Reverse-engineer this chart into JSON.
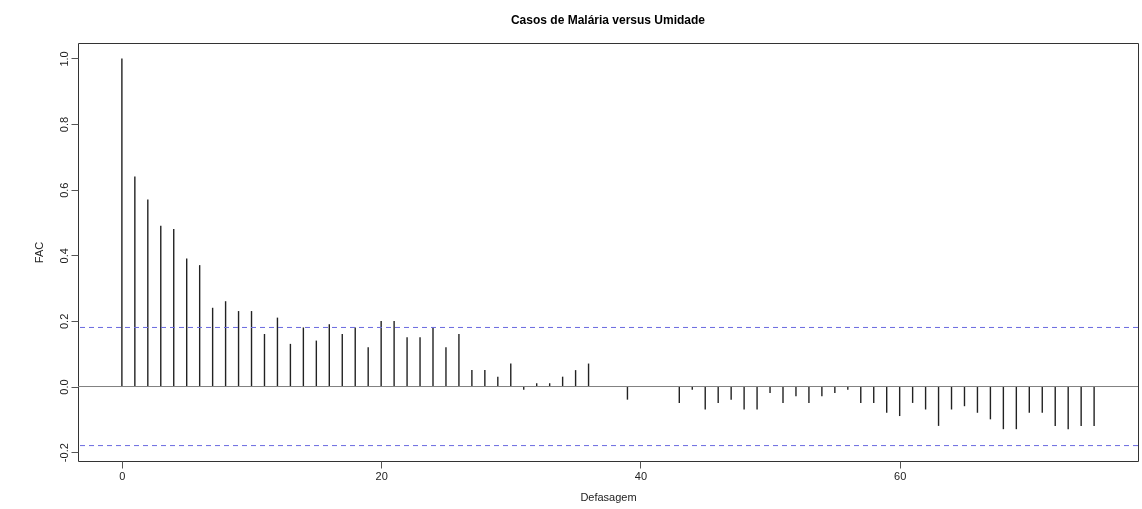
{
  "chart_data": {
    "type": "bar",
    "title": "Casos de Malária versus Umidade",
    "xlabel": "Defasagem",
    "ylabel": "FAC",
    "x": [
      0,
      1,
      2,
      3,
      4,
      5,
      6,
      7,
      8,
      9,
      10,
      11,
      12,
      13,
      14,
      15,
      16,
      17,
      18,
      19,
      20,
      21,
      22,
      23,
      24,
      25,
      26,
      27,
      28,
      29,
      30,
      31,
      32,
      33,
      34,
      35,
      36,
      37,
      38,
      39,
      40,
      41,
      42,
      43,
      44,
      45,
      46,
      47,
      48,
      49,
      50,
      51,
      52,
      53,
      54,
      55,
      56,
      57,
      58,
      59,
      60,
      61,
      62,
      63,
      64,
      65,
      66,
      67,
      68,
      69,
      70,
      71,
      72,
      73,
      74,
      75
    ],
    "values": [
      1.0,
      0.64,
      0.57,
      0.49,
      0.48,
      0.39,
      0.37,
      0.24,
      0.26,
      0.23,
      0.23,
      0.16,
      0.21,
      0.13,
      0.18,
      0.14,
      0.19,
      0.16,
      0.18,
      0.12,
      0.2,
      0.2,
      0.15,
      0.15,
      0.18,
      0.12,
      0.16,
      0.05,
      0.05,
      0.03,
      0.07,
      -0.01,
      0.01,
      0.01,
      0.03,
      0.05,
      0.07,
      0.0,
      0.0,
      -0.04,
      0.0,
      0.0,
      0.0,
      -0.05,
      -0.01,
      -0.07,
      -0.05,
      -0.04,
      -0.07,
      -0.07,
      -0.02,
      -0.05,
      -0.03,
      -0.05,
      -0.03,
      -0.02,
      -0.01,
      -0.05,
      -0.05,
      -0.08,
      -0.09,
      -0.05,
      -0.07,
      -0.12,
      -0.07,
      -0.06,
      -0.08,
      -0.1,
      -0.13,
      -0.13,
      -0.08,
      -0.08,
      -0.12,
      -0.13,
      -0.12,
      -0.12
    ],
    "color": "#222222",
    "xlim": [
      -3,
      78
    ],
    "xticks": [
      0,
      20,
      40,
      60
    ],
    "ylim": [
      -0.227,
      1.047
    ],
    "yticks": [
      {
        "value": -0.2,
        "label": "-0.2"
      },
      {
        "value": 0,
        "label": "0.0"
      },
      0.2,
      0.4,
      0.6,
      0.8,
      {
        "value": 1,
        "label": "1.0"
      }
    ],
    "ref_lines": [
      {
        "axis": "y",
        "value": 0,
        "color": "#808080",
        "line_style": "solid"
      },
      {
        "axis": "y",
        "value": 0.18,
        "color": "#6a6ae0",
        "line_style": "dashed"
      },
      {
        "axis": "y",
        "value": -0.18,
        "color": "#6a6ae0",
        "line_style": "dashed"
      }
    ]
  }
}
